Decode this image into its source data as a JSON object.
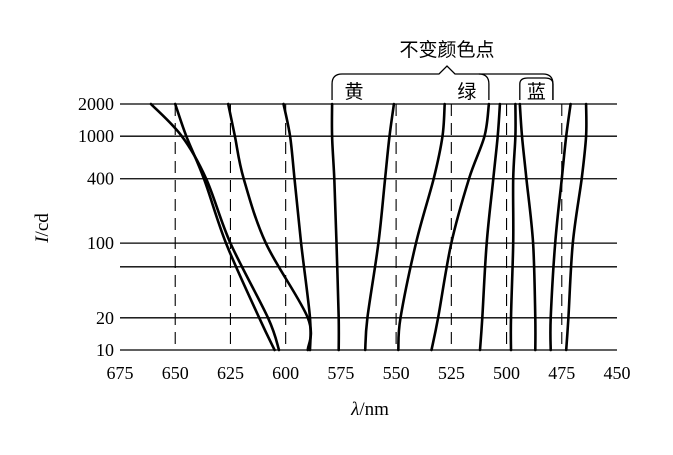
{
  "chart_data": {
    "type": "line",
    "xlabel_symbol": "λ",
    "xlabel_unit": "/nm",
    "ylabel_symbol": "I",
    "ylabel_unit": "/cd",
    "x_reversed": true,
    "xlim": [
      675,
      450
    ],
    "y_scale": "log",
    "ylim": [
      10,
      2000
    ],
    "x_ticks": [
      675,
      650,
      625,
      600,
      575,
      550,
      525,
      500,
      475,
      450
    ],
    "y_ticks": [
      10,
      20,
      100,
      400,
      1000,
      2000
    ],
    "extra_y_gridlines": [
      60
    ],
    "dashed_verticals": [
      650,
      625,
      600,
      550,
      525,
      500,
      475
    ],
    "annotation": {
      "title": "不变颜色点",
      "groups": [
        {
          "label": "黄",
          "from": 579,
          "to": 508
        },
        {
          "label": "绿",
          "from": 508,
          "to": 479
        },
        {
          "label": "蓝",
          "from": 494,
          "to": 479
        }
      ]
    },
    "series": [
      {
        "points": [
          [
            661,
            2000
          ],
          [
            647,
            1000
          ],
          [
            636,
            400
          ],
          [
            625,
            100
          ],
          [
            608,
            20
          ],
          [
            603,
            10
          ]
        ]
      },
      {
        "points": [
          [
            650,
            2000
          ],
          [
            645,
            1000
          ],
          [
            637,
            400
          ],
          [
            627,
            100
          ],
          [
            612,
            20
          ],
          [
            605,
            10
          ]
        ]
      },
      {
        "points": [
          [
            626,
            2000
          ],
          [
            623,
            1000
          ],
          [
            619,
            400
          ],
          [
            609,
            100
          ],
          [
            590,
            20
          ],
          [
            590,
            10
          ]
        ]
      },
      {
        "points": [
          [
            601,
            2000
          ],
          [
            598,
            1000
          ],
          [
            596,
            400
          ],
          [
            593,
            100
          ],
          [
            589,
            20
          ],
          [
            589,
            10
          ]
        ]
      },
      {
        "points": [
          [
            579,
            2000
          ],
          [
            579,
            1000
          ],
          [
            578,
            400
          ],
          [
            577,
            100
          ],
          [
            576,
            20
          ],
          [
            576,
            10
          ]
        ]
      },
      {
        "points": [
          [
            551,
            2000
          ],
          [
            553,
            1000
          ],
          [
            555,
            400
          ],
          [
            558,
            100
          ],
          [
            563,
            20
          ],
          [
            564,
            10
          ]
        ]
      },
      {
        "points": [
          [
            528,
            2000
          ],
          [
            529,
            1000
          ],
          [
            533,
            400
          ],
          [
            541,
            100
          ],
          [
            548,
            20
          ],
          [
            549,
            10
          ]
        ]
      },
      {
        "points": [
          [
            508,
            2000
          ],
          [
            510,
            1000
          ],
          [
            517,
            400
          ],
          [
            525,
            100
          ],
          [
            531,
            20
          ],
          [
            534,
            10
          ]
        ]
      },
      {
        "points": [
          [
            503,
            2000
          ],
          [
            504,
            1000
          ],
          [
            506,
            400
          ],
          [
            509,
            100
          ],
          [
            511,
            20
          ],
          [
            512,
            10
          ]
        ]
      },
      {
        "points": [
          [
            496,
            2000
          ],
          [
            496,
            1000
          ],
          [
            497,
            400
          ],
          [
            497,
            100
          ],
          [
            498,
            20
          ],
          [
            498,
            10
          ]
        ]
      },
      {
        "points": [
          [
            494,
            2000
          ],
          [
            493,
            1000
          ],
          [
            491,
            400
          ],
          [
            488,
            100
          ],
          [
            487,
            20
          ],
          [
            487,
            10
          ]
        ]
      },
      {
        "points": [
          [
            471,
            2000
          ],
          [
            473,
            1000
          ],
          [
            475,
            400
          ],
          [
            478,
            100
          ],
          [
            480,
            20
          ],
          [
            480,
            10
          ]
        ]
      },
      {
        "points": [
          [
            464,
            2000
          ],
          [
            464,
            1000
          ],
          [
            466,
            400
          ],
          [
            470,
            100
          ],
          [
            472,
            20
          ],
          [
            473,
            10
          ]
        ]
      }
    ]
  }
}
